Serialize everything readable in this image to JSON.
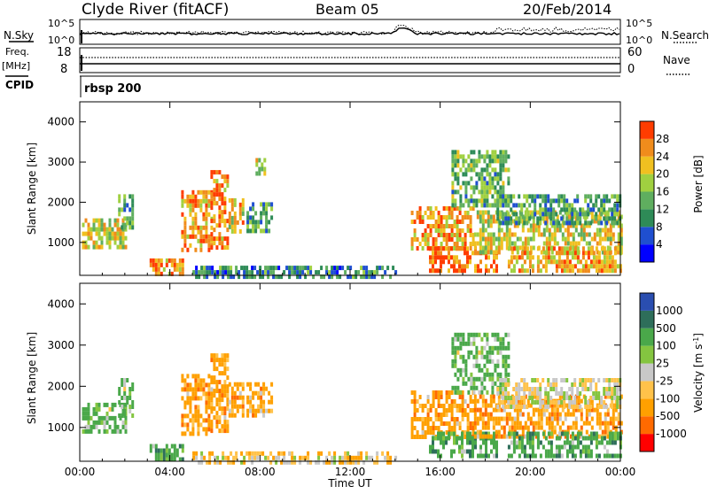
{
  "header": {
    "station": "Clyde River (fitACF)",
    "beam": "Beam 05",
    "date": "20/Feb/2014"
  },
  "top_panels": {
    "nsky_label": "N.Sky",
    "nsearch_label": "N.Search",
    "freq_label": "Freq.",
    "freq_unit": "[MHz]",
    "nave_label": "Nave",
    "cpid_label": "CPID",
    "cpid_value": "rbsp 200",
    "left_ticks_noise": [
      "10^5",
      "10^0"
    ],
    "right_ticks_noise": [
      "10^5",
      "10^0"
    ],
    "left_ticks_freq": [
      "18",
      "8"
    ],
    "right_ticks_nave": [
      "60",
      "0"
    ]
  },
  "colors": {
    "power": [
      "#0000ff",
      "#1f4fd0",
      "#2e8b57",
      "#5fae5f",
      "#a0d040",
      "#f0c020",
      "#f08c1c",
      "#ff3c00"
    ],
    "velocity": [
      "#ff0000",
      "#ff6a00",
      "#ffa000",
      "#ffc24a",
      "#c8c8c8",
      "#84c540",
      "#4aa84a",
      "#2e6e5a",
      "#2a4eb0"
    ]
  },
  "chart_data": [
    {
      "type": "heatmap",
      "title": "",
      "panel": "power",
      "ylabel": "Slant Range [km]",
      "xlabel": "",
      "ylim": [
        180,
        4500
      ],
      "xlim": [
        0,
        24
      ],
      "y_ticks": [
        1000,
        2000,
        3000,
        4000
      ],
      "x_ticks": [
        0,
        4,
        8,
        12,
        16,
        20,
        24
      ],
      "x_tick_labels": [
        "00:00",
        "04:00",
        "08:00",
        "12:00",
        "16:00",
        "20:00",
        "00:00"
      ],
      "colorbar": {
        "label": "Power [dB]",
        "tick_labels": [
          "4",
          "8",
          "12",
          "16",
          "20",
          "24",
          "28"
        ],
        "range": [
          0,
          32
        ]
      },
      "regions": [
        {
          "t": [
            0.1,
            2.0
          ],
          "r": [
            900,
            1600
          ],
          "value": 20
        },
        {
          "t": [
            1.7,
            2.3
          ],
          "r": [
            1400,
            2200
          ],
          "value": 12
        },
        {
          "t": [
            3.1,
            4.6
          ],
          "r": [
            200,
            600
          ],
          "value": 26
        },
        {
          "t": [
            4.5,
            5.8
          ],
          "r": [
            800,
            2300
          ],
          "value": 24
        },
        {
          "t": [
            5.8,
            6.6
          ],
          "r": [
            900,
            2800
          ],
          "value": 26
        },
        {
          "t": [
            6.6,
            7.2
          ],
          "r": [
            1300,
            2100
          ],
          "value": 22
        },
        {
          "t": [
            7.4,
            8.5
          ],
          "r": [
            1300,
            2000
          ],
          "value": 12
        },
        {
          "t": [
            7.8,
            8.2
          ],
          "r": [
            2700,
            3100
          ],
          "value": 18
        },
        {
          "t": [
            5.0,
            14.0
          ],
          "r": [
            180,
            420
          ],
          "value": 10
        },
        {
          "t": [
            14.7,
            17.5
          ],
          "r": [
            800,
            1900
          ],
          "value": 24
        },
        {
          "t": [
            15.5,
            18.5
          ],
          "r": [
            300,
            900
          ],
          "value": 28
        },
        {
          "t": [
            16.5,
            19.0
          ],
          "r": [
            1900,
            3300
          ],
          "value": 14
        },
        {
          "t": [
            17.5,
            24.0
          ],
          "r": [
            800,
            1800
          ],
          "value": 20
        },
        {
          "t": [
            18.5,
            24.0
          ],
          "r": [
            1500,
            2200
          ],
          "value": 12
        },
        {
          "t": [
            19.0,
            24.0
          ],
          "r": [
            300,
            900
          ],
          "value": 24
        }
      ]
    },
    {
      "type": "heatmap",
      "title": "",
      "panel": "velocity",
      "ylabel": "Slant Range [km]",
      "xlabel": "Time UT",
      "ylim": [
        180,
        4500
      ],
      "xlim": [
        0,
        24
      ],
      "y_ticks": [
        1000,
        2000,
        3000,
        4000
      ],
      "x_ticks": [
        0,
        4,
        8,
        12,
        16,
        20,
        24
      ],
      "x_tick_labels": [
        "00:00",
        "04:00",
        "08:00",
        "12:00",
        "16:00",
        "20:00",
        "00:00"
      ],
      "colorbar": {
        "label": "Velocity [m s^-1]",
        "tick_labels": [
          "-1000",
          "-500",
          "-100",
          "-25",
          "25",
          "100",
          "500",
          "1000"
        ],
        "levels": [
          -2000,
          -1000,
          -500,
          -100,
          -25,
          25,
          100,
          500,
          1000,
          2000
        ]
      },
      "regions": [
        {
          "t": [
            0.1,
            2.0
          ],
          "r": [
            900,
            1600
          ],
          "value": 150
        },
        {
          "t": [
            1.7,
            2.3
          ],
          "r": [
            1300,
            2200
          ],
          "value": 150
        },
        {
          "t": [
            3.1,
            4.6
          ],
          "r": [
            200,
            600
          ],
          "value": 300
        },
        {
          "t": [
            4.5,
            5.8
          ],
          "r": [
            800,
            2300
          ],
          "value": -300
        },
        {
          "t": [
            5.8,
            6.6
          ],
          "r": [
            900,
            2800
          ],
          "value": -300
        },
        {
          "t": [
            6.6,
            7.2
          ],
          "r": [
            1300,
            2100
          ],
          "value": -300
        },
        {
          "t": [
            7.4,
            8.5
          ],
          "r": [
            1300,
            2100
          ],
          "value": -300
        },
        {
          "t": [
            5.0,
            14.0
          ],
          "r": [
            180,
            420
          ],
          "value": -60
        },
        {
          "t": [
            14.7,
            17.5
          ],
          "r": [
            800,
            1900
          ],
          "value": -300
        },
        {
          "t": [
            15.5,
            18.5
          ],
          "r": [
            300,
            900
          ],
          "value": 300
        },
        {
          "t": [
            16.5,
            19.0
          ],
          "r": [
            1900,
            3300
          ],
          "value": 150
        },
        {
          "t": [
            17.5,
            24.0
          ],
          "r": [
            800,
            1800
          ],
          "value": -300
        },
        {
          "t": [
            18.5,
            24.0
          ],
          "r": [
            1500,
            2200
          ],
          "value": 0
        },
        {
          "t": [
            19.0,
            24.0
          ],
          "r": [
            300,
            900
          ],
          "value": 300
        }
      ]
    }
  ]
}
